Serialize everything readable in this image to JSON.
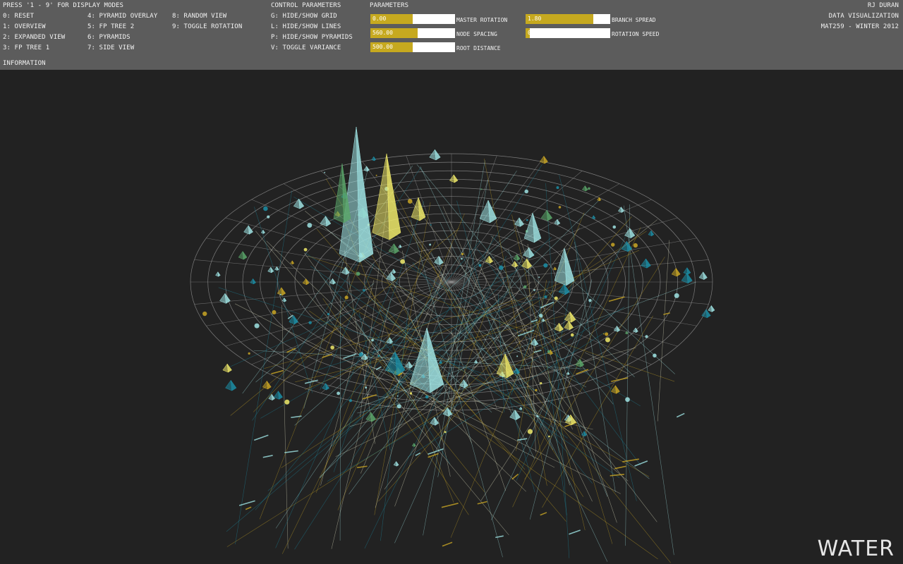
{
  "header": {
    "display_modes": {
      "title": "PRESS '1 - 9' FOR DISPLAY MODES",
      "col1": [
        "0: RESET",
        "1: OVERVIEW",
        "2: EXPANDED VIEW",
        "3: FP TREE 1"
      ],
      "col2": [
        "4: PYRAMID OVERLAY",
        "5: FP TREE 2",
        "6: PYRAMIDS",
        "7: SIDE VIEW"
      ],
      "col3": [
        "8: RANDOM VIEW",
        "9: TOGGLE ROTATION"
      ]
    },
    "information_label": "INFORMATION",
    "control_parameters": {
      "title": "CONTROL PARAMETERS",
      "items": [
        "G: HIDE/SHOW GRID",
        "L: HIDE/SHOW LINES",
        "P: HIDE/SHOW PYRAMIDS",
        "V: TOGGLE VARIANCE"
      ]
    },
    "parameters": {
      "title": "PARAMETERS",
      "sliders": [
        {
          "label": "MASTER ROTATION",
          "value": "0.00",
          "fraction": 0.5
        },
        {
          "label": "NODE SPACING",
          "value": "560.00",
          "fraction": 0.56
        },
        {
          "label": "ROOT DISTANCE",
          "value": "500.00",
          "fraction": 0.5
        },
        {
          "label": "BRANCH SPREAD",
          "value": "1.80",
          "fraction": 0.8
        },
        {
          "label": "ROTATION SPEED",
          "value": "0",
          "fraction": 0.05
        }
      ]
    },
    "credits": [
      "RJ DURAN",
      "DATA VISUALIZATION",
      "MAT259 - WINTER 2012"
    ]
  },
  "dataset_title": "WATER",
  "colors": {
    "background": "#222222",
    "header": "#5c5c5c",
    "slider_fill": "#c6a91f",
    "grid": "#9a9a9a",
    "cyan_light": "#9fe3e3",
    "cyan_dark": "#1b8ea6",
    "yellow": "#f0ea6a",
    "gold": "#c9a624",
    "green": "#5aa66a"
  }
}
